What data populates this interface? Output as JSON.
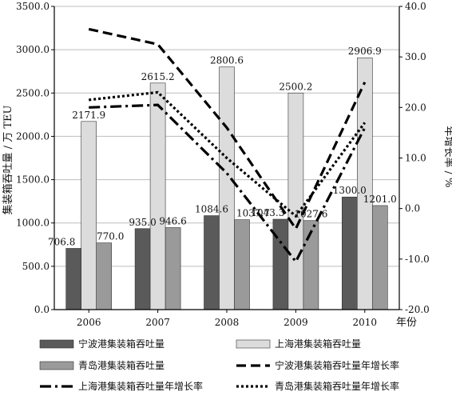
{
  "chart_data": {
    "type": "bar",
    "categories": [
      "2006",
      "2007",
      "2008",
      "2009",
      "2010"
    ],
    "xlabel": "年份",
    "ylabel": "集装箱吞吐量 / 万 TEU",
    "y2label": "年增长率 / %",
    "ylim": [
      0,
      3500
    ],
    "y2lim": [
      -20,
      40
    ],
    "yticks": [
      "0.0",
      "500.0",
      "1000.0",
      "1500.0",
      "2000.0",
      "2500.0",
      "3000.0",
      "3500.0"
    ],
    "y2ticks": [
      "-20.0",
      "-10.0",
      "0.0",
      "10.0",
      "20.0",
      "30.0",
      "40.0"
    ],
    "grid": true,
    "legend_position": "bottom",
    "bar_series": [
      {
        "name": "宁波港集装箱吞吐量",
        "color": "#5a5a5a",
        "values": [
          706.8,
          935.0,
          1084.6,
          1043.3,
          1300.0
        ],
        "labels": [
          "706.8",
          "935.0",
          "1084.6",
          "1043.3",
          "1300.0"
        ]
      },
      {
        "name": "上海港集装箱吞吐量",
        "color": "#dcdcdc",
        "values": [
          2171.9,
          2615.2,
          2800.6,
          2500.2,
          2906.9
        ],
        "labels": [
          "2171.9",
          "2615.2",
          "2800.6",
          "2500.2",
          "2906.9"
        ]
      },
      {
        "name": "青岛港集装箱吞吐量",
        "color": "#9a9a9a",
        "values": [
          770.0,
          946.6,
          1037.7,
          1027.6,
          1201.0
        ],
        "labels": [
          "770.0",
          "946.6",
          "1037.7",
          "1027.6",
          "1201.0"
        ]
      }
    ],
    "line_series": [
      {
        "name": "宁波港集装箱吞吐量年增长率",
        "style": "dash",
        "values": [
          35.5,
          32.5,
          16.0,
          -4.0,
          25.0
        ]
      },
      {
        "name": "上海港集装箱吞吐量年增长率",
        "style": "dashdot",
        "values": [
          20.0,
          20.5,
          7.0,
          -10.5,
          16.0
        ]
      },
      {
        "name": "青岛港集装箱吞吐量年增长率",
        "style": "dot",
        "values": [
          21.5,
          23.0,
          10.0,
          -1.5,
          17.0
        ]
      }
    ]
  }
}
